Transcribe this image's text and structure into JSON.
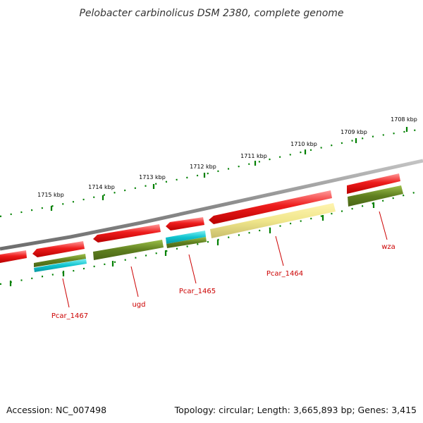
{
  "title": "Pelobacter carbinolicus DSM 2380, complete genome",
  "footer": {
    "accession": "Accession: NC_007498",
    "summary": "Topology: circular; Length: 3,665,893 bp; Genes: 3,415"
  },
  "colors": {
    "backbone": "#9a9a9a",
    "cds_forward": "#e8141c",
    "cds_reverse": "#e8141c",
    "cog_green": "#6b8e23",
    "cog_cyan": "#1ec8d2",
    "cog_yellow": "#f0e68c",
    "tick_green": "#008000",
    "label_red": "#cc0000"
  },
  "kbp_labels": [
    "1708 kbp",
    "1709 kbp",
    "1710 kbp",
    "1711 kbp",
    "1712 kbp",
    "1713 kbp",
    "1714 kbp",
    "1715 kbp"
  ],
  "gene_labels": [
    {
      "name": "wza",
      "icon": "callout-line"
    },
    {
      "name": "Pcar_1464",
      "icon": "callout-line"
    },
    {
      "name": "Pcar_1465",
      "icon": "callout-line"
    },
    {
      "name": "ugd",
      "icon": "callout-line"
    },
    {
      "name": "Pcar_1467",
      "icon": "callout-line"
    }
  ]
}
